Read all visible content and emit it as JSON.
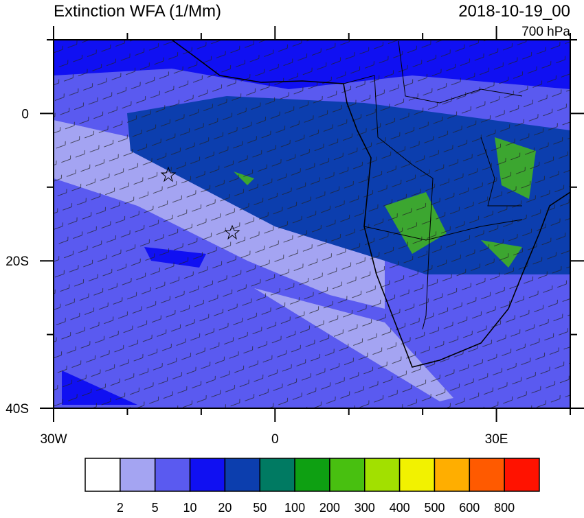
{
  "header": {
    "title": "Extinction WFA (1/Mm)",
    "date": "2018-10-19_00",
    "level": "700 hPa"
  },
  "map": {
    "xlim": [
      -30,
      40
    ],
    "ylim": [
      -40,
      10
    ],
    "xticks": [
      {
        "value": -30,
        "label": "30W"
      },
      0,
      {
        "value": 30,
        "label": "30E"
      }
    ],
    "xminorticks": [
      -20,
      -10,
      10,
      20,
      40
    ],
    "yticks": [
      {
        "value": -40,
        "label": "40S"
      },
      {
        "value": -20,
        "label": "20S"
      },
      0
    ],
    "yminorticks": [
      -30,
      -10,
      10
    ]
  },
  "colorbar": {
    "colors": [
      "#ffffff",
      "#a4a4f2",
      "#5a5af0",
      "#1010f2",
      "#0c3eae",
      "#007a62",
      "#0ea012",
      "#48c010",
      "#a2e000",
      "#f2f200",
      "#ffae00",
      "#ff5a00",
      "#ff1200"
    ],
    "levels": [
      2,
      5,
      10,
      20,
      50,
      100,
      200,
      300,
      400,
      500,
      600,
      800
    ]
  }
}
